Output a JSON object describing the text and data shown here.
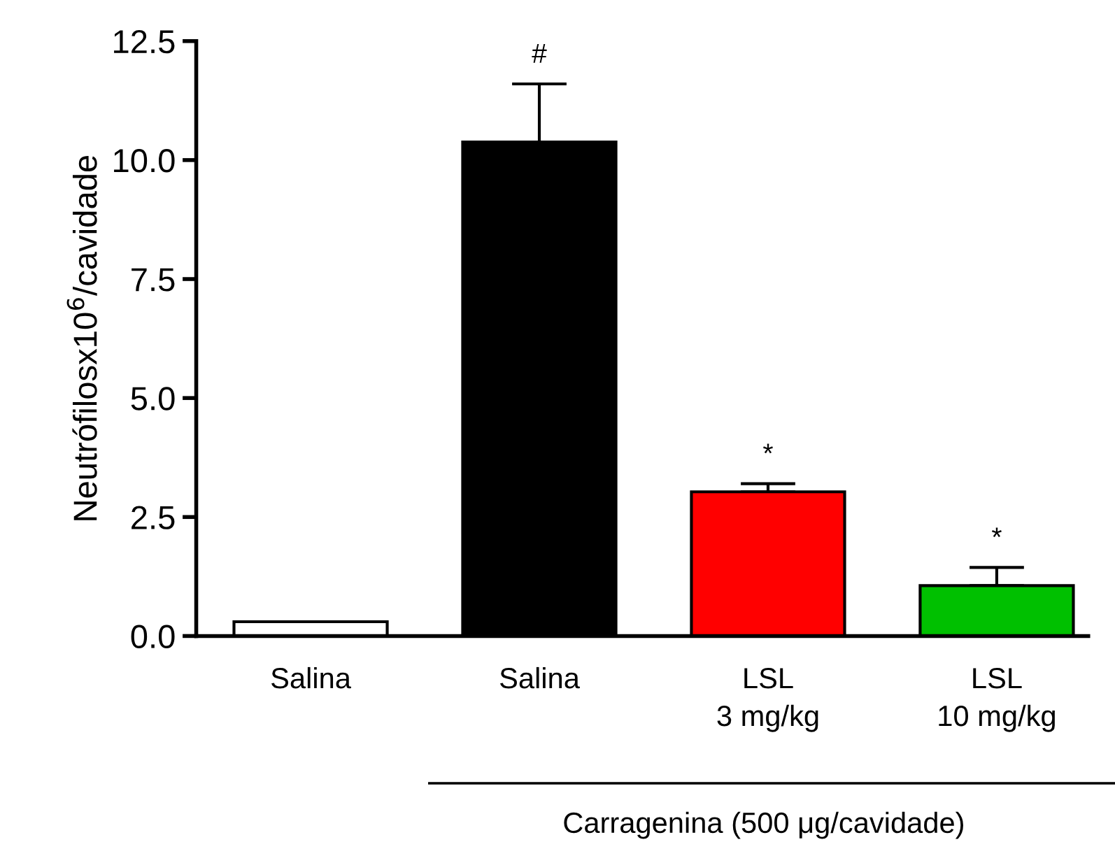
{
  "chart_data": {
    "type": "bar",
    "ylabel": "Neutrófilosx10$^{6}$/cavidade",
    "categories": [
      "Salina",
      "Salina",
      "LSL\n3 mg/kg",
      "LSL\n10 mg/kg"
    ],
    "values": [
      0.3,
      10.38,
      3.03,
      1.06
    ],
    "colors": [
      "#ffffff",
      "#000000",
      "#ff0000",
      "#00c000"
    ],
    "errors": [
      null,
      [
        10.38,
        11.6
      ],
      [
        3.03,
        3.2
      ],
      [
        1.06,
        1.44
      ]
    ],
    "value_labels": [
      null,
      "#",
      "*",
      "*"
    ],
    "ylim": [
      0,
      12.5
    ],
    "yticks": [
      {
        "value": 0,
        "label": "0.0"
      },
      {
        "value": 2.5,
        "label": "2.5"
      },
      {
        "value": 5,
        "label": "5.0"
      },
      {
        "value": 7.5,
        "label": "7.5"
      },
      {
        "value": 10,
        "label": "10.0"
      },
      {
        "value": 12.5,
        "label": "12.5"
      }
    ],
    "grid": false,
    "annotations": [
      "Carragenina (500 μg/cavidade)"
    ]
  }
}
